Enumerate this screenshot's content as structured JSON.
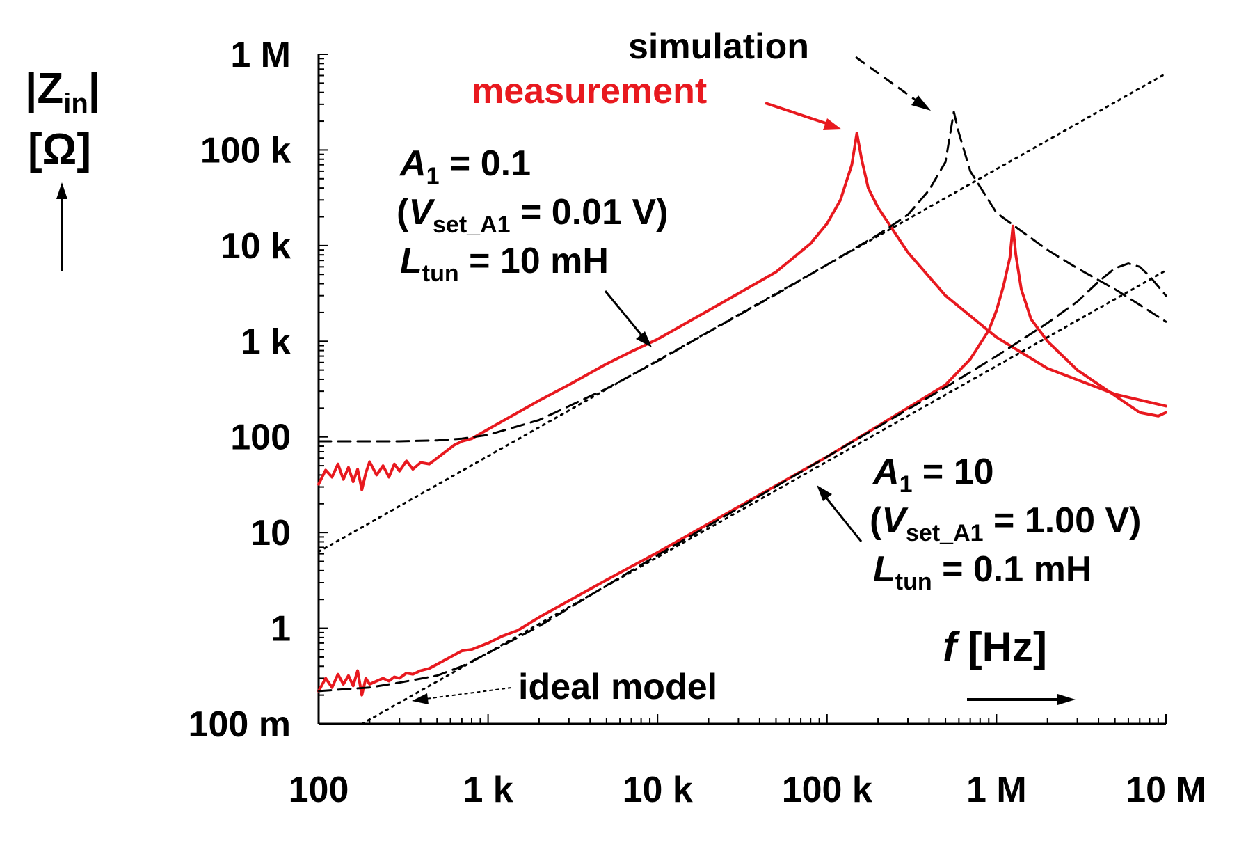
{
  "chart_data": {
    "type": "line",
    "x_scale": "log",
    "y_scale": "log",
    "xlim": [
      100,
      10000000
    ],
    "ylim": [
      0.1,
      1000000
    ],
    "x_ticks": [
      {
        "value": 100,
        "label": "100"
      },
      {
        "value": 1000,
        "label": "1 k"
      },
      {
        "value": 10000,
        "label": "10 k"
      },
      {
        "value": 100000,
        "label": "100 k"
      },
      {
        "value": 1000000,
        "label": "1 M"
      },
      {
        "value": 10000000,
        "label": "10 M"
      }
    ],
    "y_ticks": [
      {
        "value": 0.1,
        "label": "100 m"
      },
      {
        "value": 1,
        "label": "1"
      },
      {
        "value": 10,
        "label": "10"
      },
      {
        "value": 100,
        "label": "100"
      },
      {
        "value": 1000,
        "label": "1 k"
      },
      {
        "value": 10000,
        "label": "10 k"
      },
      {
        "value": 100000,
        "label": "100 k"
      },
      {
        "value": 1000000,
        "label": "1 M"
      }
    ],
    "ylabel": {
      "main": "|Z",
      "sub": "in",
      "end": "|",
      "unit": "[Ω]"
    },
    "xlabel": {
      "main": "f",
      "unit": " [Hz]"
    },
    "grid": false,
    "colors": {
      "measurement": "#e8191f",
      "simulation": "#000000",
      "ideal": "#000000"
    },
    "series": [
      {
        "key": "meas_A1_0.1",
        "color": "#e8191f",
        "style": "solid",
        "x": [
          100,
          110,
          120,
          130,
          140,
          150,
          160,
          170,
          180,
          190,
          200,
          220,
          240,
          260,
          280,
          300,
          330,
          360,
          400,
          450,
          500,
          560,
          630,
          700,
          800,
          1000,
          1500,
          2000,
          3000,
          5000,
          7000,
          10000,
          20000,
          50000,
          80000,
          100000,
          120000,
          140000,
          150000,
          160000,
          175000,
          200000,
          300000,
          500000,
          1000000,
          2000000,
          5000000,
          10000000
        ],
        "y": [
          32,
          45,
          38,
          52,
          36,
          48,
          34,
          46,
          28,
          42,
          55,
          40,
          50,
          38,
          52,
          44,
          56,
          46,
          54,
          52,
          60,
          70,
          82,
          90,
          96,
          120,
          180,
          240,
          350,
          580,
          780,
          1050,
          2100,
          5300,
          10500,
          17000,
          30000,
          70000,
          150000,
          80000,
          40000,
          25000,
          8500,
          3000,
          1100,
          520,
          280,
          210
        ]
      },
      {
        "key": "meas_A1_10",
        "color": "#e8191f",
        "style": "solid",
        "x": [
          100,
          110,
          120,
          130,
          140,
          150,
          160,
          170,
          180,
          190,
          200,
          220,
          240,
          260,
          280,
          300,
          330,
          360,
          400,
          450,
          500,
          600,
          700,
          800,
          1000,
          1200,
          1500,
          2000,
          5000,
          10000,
          100000,
          200000,
          500000,
          700000,
          900000,
          1000000,
          1100000,
          1200000,
          1250000,
          1300000,
          1400000,
          1600000,
          2000000,
          3000000,
          5000000,
          7000000,
          9000000,
          10000000
        ],
        "y": [
          0.22,
          0.3,
          0.24,
          0.33,
          0.26,
          0.32,
          0.25,
          0.36,
          0.2,
          0.3,
          0.26,
          0.28,
          0.3,
          0.28,
          0.31,
          0.3,
          0.34,
          0.33,
          0.36,
          0.38,
          0.42,
          0.5,
          0.58,
          0.6,
          0.7,
          0.82,
          0.95,
          1.3,
          3.2,
          6.2,
          62,
          130,
          350,
          650,
          1300,
          2100,
          3800,
          7500,
          16000,
          8000,
          3500,
          1700,
          1000,
          500,
          270,
          180,
          165,
          180
        ]
      },
      {
        "key": "sim_A1_0.1",
        "color": "#000000",
        "style": "dashed",
        "x": [
          100,
          200,
          300,
          500,
          700,
          1000,
          2000,
          5000,
          10000,
          20000,
          50000,
          100000,
          200000,
          300000,
          400000,
          500000,
          560000,
          600000,
          700000,
          1000000,
          1500000,
          2000000,
          3000000,
          5000000,
          7000000,
          10000000
        ],
        "y": [
          90,
          90,
          90,
          92,
          96,
          105,
          150,
          320,
          620,
          1250,
          3100,
          6300,
          13000,
          21000,
          38000,
          75000,
          250000,
          150000,
          60000,
          22000,
          13000,
          9000,
          5800,
          3500,
          2400,
          1600
        ]
      },
      {
        "key": "sim_A1_10",
        "color": "#000000",
        "style": "dashed",
        "x": [
          100,
          200,
          300,
          500,
          700,
          1000,
          1500,
          2000,
          5000,
          10000,
          100000,
          500000,
          1000000,
          2000000,
          3000000,
          4000000,
          5000000,
          6000000,
          7000000,
          8000000,
          10000000
        ],
        "y": [
          0.22,
          0.24,
          0.27,
          0.32,
          0.4,
          0.55,
          0.8,
          1.05,
          2.8,
          5.8,
          62,
          330,
          700,
          1550,
          2600,
          4200,
          5800,
          6500,
          6000,
          4800,
          3000
        ]
      },
      {
        "key": "ideal_A1_0.1",
        "color": "#000000",
        "style": "dotted",
        "x": [
          100,
          10000000
        ],
        "y": [
          6.3,
          630000
        ]
      },
      {
        "key": "ideal_A1_10",
        "color": "#000000",
        "style": "dotted",
        "x": [
          180,
          10000000
        ],
        "y": [
          0.1,
          5500
        ]
      }
    ],
    "annotations": {
      "simulation": "simulation",
      "measurement": "measurement",
      "ideal_model": "ideal model",
      "set1": {
        "a_main": "A",
        "a_sub": "1",
        "a_val": " = 0.1",
        "v_open": "(",
        "v_main": "V",
        "v_sub": "set_A1",
        "v_val": " =  0.01 V)",
        "l_main": "L",
        "l_sub": "tun",
        "l_val": " = 10 mH"
      },
      "set2": {
        "a_main": "A",
        "a_sub": "1",
        "a_val": " = 10",
        "v_open": "(",
        "v_main": "V",
        "v_sub": "set_A1",
        "v_val": " =  1.00 V)",
        "l_main": "L",
        "l_sub": "tun",
        "l_val": " = 0.1 mH"
      }
    }
  }
}
